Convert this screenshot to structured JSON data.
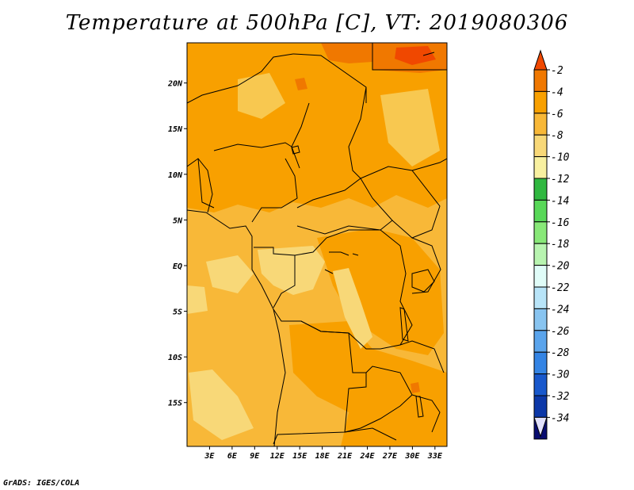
{
  "title": "Temperature at 500hPa [C], VT: 2019080306",
  "credit": "GrADS: IGES/COLA",
  "map": {
    "variable": "Temperature",
    "level": "500hPa",
    "units": "C",
    "valid_time": "2019080306",
    "lon_range": [
      0,
      34.6
    ],
    "lat_range": [
      -19.8,
      24.4
    ],
    "lon_ticks": [
      {
        "value": 3,
        "label": "3E"
      },
      {
        "value": 6,
        "label": "6E"
      },
      {
        "value": 9,
        "label": "9E"
      },
      {
        "value": 12,
        "label": "12E"
      },
      {
        "value": 15,
        "label": "15E"
      },
      {
        "value": 18,
        "label": "18E"
      },
      {
        "value": 21,
        "label": "21E"
      },
      {
        "value": 24,
        "label": "24E"
      },
      {
        "value": 27,
        "label": "27E"
      },
      {
        "value": 30,
        "label": "30E"
      },
      {
        "value": 33,
        "label": "33E"
      }
    ],
    "lat_ticks": [
      {
        "value": 20,
        "label": "20N"
      },
      {
        "value": 15,
        "label": "15N"
      },
      {
        "value": 10,
        "label": "10N"
      },
      {
        "value": 5,
        "label": "5N"
      },
      {
        "value": 0,
        "label": "EQ"
      },
      {
        "value": -5,
        "label": "5S"
      },
      {
        "value": -10,
        "label": "10S"
      },
      {
        "value": -15,
        "label": "15S"
      }
    ]
  },
  "colorbar": {
    "levels": [
      "-2",
      "-4",
      "-6",
      "-8",
      "-10",
      "-12",
      "-14",
      "-16",
      "-18",
      "-20",
      "-22",
      "-24",
      "-26",
      "-28",
      "-30",
      "-32",
      "-34"
    ],
    "colors": [
      "#f04800",
      "#f07800",
      "#f8a000",
      "#f8b838",
      "#f8d878",
      "#f8f0a0",
      "#30b840",
      "#58d858",
      "#88e878",
      "#b8f4b0",
      "#e0fcf8",
      "#b8e4f8",
      "#88c4f0",
      "#5aa4ec",
      "#3484e4",
      "#1858cc",
      "#0c38a8",
      "#080c70",
      "#e0e0fc"
    ],
    "top_color": "#f04800",
    "bottom_color": "#e0e0fc"
  }
}
